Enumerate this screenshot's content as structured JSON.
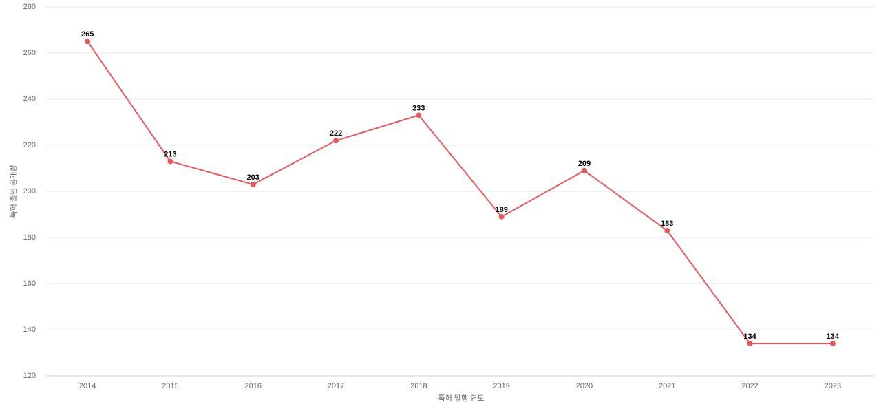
{
  "chart_data": {
    "type": "line",
    "x_label": "특허 발행 연도",
    "y_label": "특허 출원 공개량",
    "categories": [
      "2014",
      "2015",
      "2016",
      "2017",
      "2018",
      "2019",
      "2020",
      "2021",
      "2022",
      "2023"
    ],
    "series": [
      {
        "name": "특허 출원 공개량",
        "color": "#e8575a",
        "values": [
          265,
          213,
          203,
          222,
          233,
          189,
          209,
          183,
          134,
          134
        ]
      }
    ],
    "ylim": [
      120,
      280
    ],
    "yticks": [
      120,
      140,
      160,
      180,
      200,
      220,
      240,
      260,
      280
    ],
    "grid": true,
    "data_labels": true
  }
}
